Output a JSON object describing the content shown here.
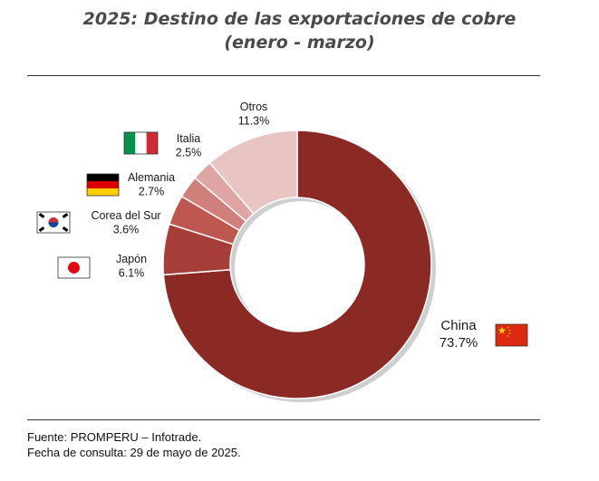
{
  "title_line1": "2025: Destino de las exportaciones de cobre",
  "title_line2": "(enero - marzo)",
  "footnote": {
    "source": "Fuente: PROMPERU – Infotrade.",
    "date": "Fecha de consulta: 29 de mayo de 2025."
  },
  "chart_data": {
    "type": "pie",
    "title": "2025: Destino de las exportaciones de cobre (enero - marzo)",
    "donut": true,
    "unit": "%",
    "slices": [
      {
        "label": "China",
        "value": 73.7,
        "value_label": "73.7%",
        "color": "#8b2a25",
        "icon": "china-flag-icon"
      },
      {
        "label": "Japón",
        "value": 6.1,
        "value_label": "6.1%",
        "color": "#a63d38",
        "icon": "japan-flag-icon"
      },
      {
        "label": "Corea del Sur",
        "value": 3.6,
        "value_label": "3.6%",
        "color": "#bf5751",
        "icon": "south-korea-flag-icon"
      },
      {
        "label": "Alemania",
        "value": 2.7,
        "value_label": "2.7%",
        "color": "#d07f7b",
        "icon": "germany-flag-icon"
      },
      {
        "label": "Italia",
        "value": 2.5,
        "value_label": "2.5%",
        "color": "#dea5a2",
        "icon": "italy-flag-icon"
      },
      {
        "label": "Otros",
        "value": 11.3,
        "value_label": "11.3%",
        "color": "#e8c4c2",
        "icon": ""
      }
    ]
  }
}
